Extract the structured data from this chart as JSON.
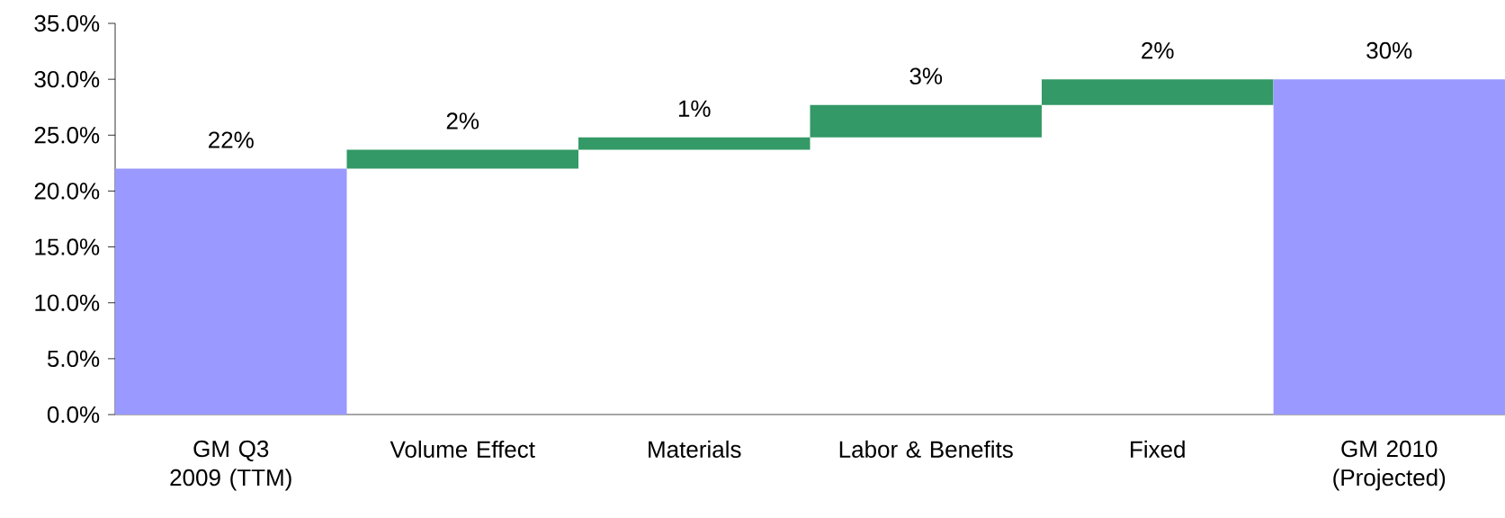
{
  "chart_data": {
    "type": "bar",
    "categories": [
      "GM Q3 2009 (TTM)",
      "Volume Effect",
      "Materials",
      "Labor & Benefits",
      "Fixed",
      "GM 2010 (Projected)"
    ],
    "values": [
      22,
      1.7,
      1.1,
      2.9,
      2.3,
      30
    ],
    "base": [
      0,
      22,
      23.7,
      24.8,
      27.7,
      0
    ],
    "colors": [
      "#9999ff",
      "#339966",
      "#339966",
      "#339966",
      "#339966",
      "#9999ff"
    ],
    "value_labels": [
      "22%",
      "2%",
      "1%",
      "3%",
      "2%",
      "30%"
    ],
    "ylim": [
      0,
      35
    ],
    "yticks": [
      {
        "value": 0,
        "label": "0.0%"
      },
      {
        "value": 5,
        "label": "5.0%"
      },
      {
        "value": 10,
        "label": "10.0%"
      },
      {
        "value": 15,
        "label": "15.0%"
      },
      {
        "value": 20,
        "label": "20.0%"
      },
      {
        "value": 25,
        "label": "25.0%"
      },
      {
        "value": 30,
        "label": "30.0%"
      },
      {
        "value": 35,
        "label": "35.0%"
      }
    ],
    "grid": false
  }
}
